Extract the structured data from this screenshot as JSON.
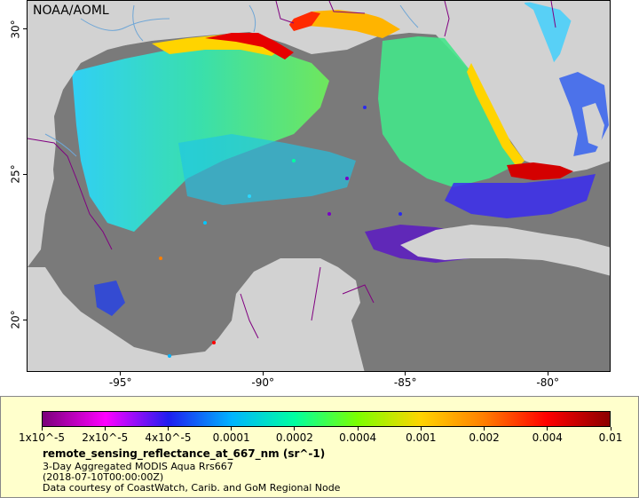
{
  "watermark": "NOAA/AOML",
  "map": {
    "lon_range": [
      -98.3,
      -77.8
    ],
    "lat_range": [
      18.2,
      31.0
    ],
    "x_ticks": [
      {
        "lon": -95,
        "label": "-95°"
      },
      {
        "lon": -90,
        "label": "-90°"
      },
      {
        "lon": -85,
        "label": "-85°"
      },
      {
        "lon": -80,
        "label": "-80°"
      }
    ],
    "y_ticks": [
      {
        "lat": 30,
        "label": "30°"
      },
      {
        "lat": 25,
        "label": "25°"
      },
      {
        "lat": 20,
        "label": "20°"
      }
    ],
    "colors": {
      "land": "#808080",
      "nodata_ocean": "#d2d2d2",
      "boundary": "#800080",
      "river": "#6fa6d6"
    }
  },
  "legend": {
    "colorbar_colors": [
      "#7a007a",
      "#ff00ff",
      "#1e1ef0",
      "#00b4ff",
      "#00ffa0",
      "#7cff00",
      "#ffd400",
      "#ff7f00",
      "#ff0000",
      "#8b0000"
    ],
    "ticks": [
      {
        "label": "1x10^-5"
      },
      {
        "label": "2x10^-5"
      },
      {
        "label": "4x10^-5"
      },
      {
        "label": "0.0001"
      },
      {
        "label": "0.0002"
      },
      {
        "label": "0.0004"
      },
      {
        "label": "0.001"
      },
      {
        "label": "0.002"
      },
      {
        "label": "0.004"
      },
      {
        "label": "0.01"
      }
    ],
    "variable_name": "remote_sensing_reflectance_at_667_nm (sr^-1)",
    "line1": "3-Day Aggregated MODIS Aqua Rrs667",
    "line2": "(2018-07-10T00:00:00Z)",
    "line3": "Data courtesy of CoastWatch, Carib. and GoM Regional Node"
  }
}
